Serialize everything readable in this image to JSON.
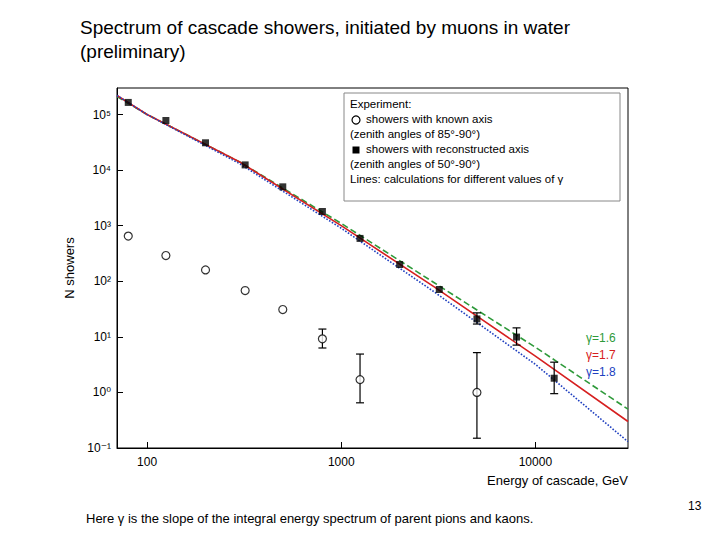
{
  "title": "Spectrum of cascade showers, initiated by muons in water (preliminary)",
  "footnote": "Here γ is the slope of the integral energy spectrum of parent pions and kaons.",
  "page_number": "13",
  "chart_data": {
    "type": "scatter",
    "x_label": "Energy of cascade, GeV",
    "y_label": "N showers",
    "log": true,
    "grid": false,
    "xlim": [
      70,
      30000
    ],
    "xticks": [
      100,
      1000,
      10000
    ],
    "ylim": [
      0.1,
      300000
    ],
    "yticks": [
      {
        "value": 0.1,
        "label": "10⁻¹"
      },
      {
        "value": 1,
        "label": "10⁰"
      },
      {
        "value": 10,
        "label": "10¹"
      },
      {
        "value": 100,
        "label": "10²"
      },
      {
        "value": 1000,
        "label": "10³"
      },
      {
        "value": 10000,
        "label": "10⁴"
      },
      {
        "value": 100000,
        "label": "10⁵"
      }
    ],
    "legend": "upper right",
    "legend_title": "Experiment:",
    "legend_note": "Lines: calculations for different values of γ",
    "series": [
      {
        "name": "γ=1.6",
        "type": "line",
        "line_style": "dashed",
        "color": "#2e9a3a",
        "x": [
          70,
          100,
          300,
          1000,
          3000,
          10000,
          30000
        ],
        "values": [
          210000,
          100000,
          14000,
          1100,
          95,
          6.5,
          0.5
        ]
      },
      {
        "name": "γ=1.7",
        "type": "line",
        "line_style": "solid",
        "color": "#d62020",
        "x": [
          70,
          100,
          300,
          1000,
          3000,
          10000,
          30000
        ],
        "values": [
          220000,
          100000,
          14000,
          1000,
          80,
          4.5,
          0.3
        ]
      },
      {
        "name": "γ=1.8",
        "type": "line",
        "line_style": "dotted",
        "color": "#2040c0",
        "x": [
          70,
          100,
          300,
          1000,
          3000,
          10000,
          30000
        ],
        "values": [
          220000,
          100000,
          13000,
          900,
          65,
          3.2,
          0.13
        ]
      },
      {
        "name": "showers with known axis",
        "note": "(zenith angles of 85°-90°)",
        "type": "scatter",
        "marker": "open circle",
        "color": "#000000",
        "x": [
          80,
          125,
          200,
          320,
          500,
          800,
          1250,
          5000
        ],
        "values": [
          650,
          290,
          160,
          68,
          31,
          9.2,
          1.7,
          1
        ],
        "error_low": [
          null,
          null,
          null,
          null,
          null,
          6.3,
          0.65,
          0.15
        ],
        "error_high": [
          null,
          null,
          null,
          null,
          null,
          13.8,
          4.9,
          5.2
        ]
      },
      {
        "name": "showers with reconstructed axis",
        "note": "(zenith angles of 50°-90°)",
        "type": "scatter",
        "marker": "filled square",
        "color": "#000000",
        "x": [
          80,
          125,
          200,
          320,
          500,
          800,
          1250,
          2000,
          3200,
          5000,
          8000,
          12500
        ],
        "values": [
          165000,
          78000,
          31000,
          12400,
          5000,
          1800,
          590,
          200,
          71,
          21,
          9.9,
          1.8
        ],
        "error_low": [
          null,
          null,
          null,
          null,
          null,
          null,
          null,
          null,
          null,
          17,
          7.1,
          0.95
        ],
        "error_high": [
          null,
          null,
          null,
          null,
          null,
          null,
          null,
          null,
          null,
          27,
          14.5,
          3.5
        ]
      }
    ]
  }
}
